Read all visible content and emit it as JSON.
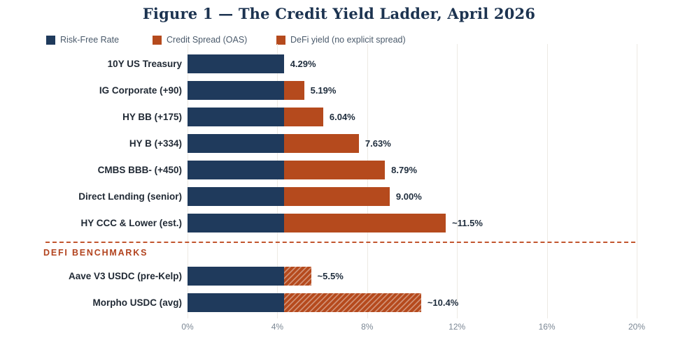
{
  "figure": {
    "title": "Figure 1 — The Credit Yield Ladder, April 2026",
    "separator_label": "DEFI BENCHMARKS"
  },
  "chart_data": {
    "type": "bar",
    "orientation": "horizontal",
    "title": "Figure 1 — The Credit Yield Ladder, April 2026",
    "stacking": "risk-free rate + credit spread",
    "risk_free_rate_pct": 4.29,
    "legend": [
      {
        "label": "Risk-Free Rate",
        "swatch": "solid-navy"
      },
      {
        "label": "Credit Spread (OAS)",
        "swatch": "solid-orange"
      },
      {
        "label": "DeFi yield (no explicit spread)",
        "swatch": "hatched-orange"
      }
    ],
    "bars": [
      {
        "label": "10Y US Treasury",
        "total_pct": 4.29,
        "risk_free_pct": 4.29,
        "spread_pct": 0.0,
        "value_label": "4.29%",
        "defi": false
      },
      {
        "label": "IG Corporate (+90)",
        "total_pct": 5.19,
        "risk_free_pct": 4.29,
        "spread_pct": 0.9,
        "value_label": "5.19%",
        "defi": false
      },
      {
        "label": "HY BB (+175)",
        "total_pct": 6.04,
        "risk_free_pct": 4.29,
        "spread_pct": 1.75,
        "value_label": "6.04%",
        "defi": false
      },
      {
        "label": "HY B (+334)",
        "total_pct": 7.63,
        "risk_free_pct": 4.29,
        "spread_pct": 3.34,
        "value_label": "7.63%",
        "defi": false
      },
      {
        "label": "CMBS BBB- (+450)",
        "total_pct": 8.79,
        "risk_free_pct": 4.29,
        "spread_pct": 4.5,
        "value_label": "8.79%",
        "defi": false
      },
      {
        "label": "Direct Lending (senior)",
        "total_pct": 9.0,
        "risk_free_pct": 4.29,
        "spread_pct": 4.71,
        "value_label": "9.00%",
        "defi": false
      },
      {
        "label": "HY CCC & Lower (est.)",
        "total_pct": 11.5,
        "risk_free_pct": 4.29,
        "spread_pct": 7.21,
        "value_label": "~11.5%",
        "defi": false
      },
      {
        "label": "Aave V3 USDC (pre-Kelp)",
        "total_pct": 5.5,
        "risk_free_pct": 4.29,
        "spread_pct": 1.21,
        "value_label": "~5.5%",
        "defi": true
      },
      {
        "label": "Morpho USDC (avg)",
        "total_pct": 10.4,
        "risk_free_pct": 4.29,
        "spread_pct": 6.11,
        "value_label": "~10.4%",
        "defi": true
      }
    ],
    "separator_label": "DEFI BENCHMARKS",
    "x_axis": {
      "tick_labels": [
        "0%",
        "4%",
        "8%",
        "12%",
        "16%",
        "20%"
      ],
      "tick_values": [
        0,
        4,
        8,
        12,
        16,
        20
      ],
      "min": 0,
      "max": 20,
      "grid": true
    },
    "colors": {
      "risk_free": "#1f3a5c",
      "spread": "#b54a1d",
      "separator_line": "#c2552e",
      "defi_section_label": "#b2431e",
      "gridline": "#edeae3",
      "tick_text": "#7b8794",
      "legend_text": "#4a5a6b",
      "title_text": "#1c3350"
    }
  }
}
